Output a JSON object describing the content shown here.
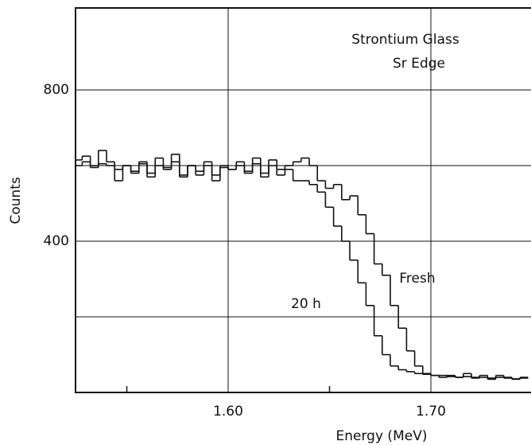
{
  "chart_data": {
    "type": "histogram",
    "xlabel": "Energy (MeV)",
    "ylabel": "Counts",
    "annotations": [
      "Strontium Glass",
      "Sr Edge",
      "Fresh",
      "20 h"
    ],
    "xlim": [
      1.5247,
      1.7494
    ],
    "ylim": [
      0,
      1017
    ],
    "xticks": [
      {
        "value": 1.6,
        "label": "1.60"
      },
      {
        "value": 1.7,
        "label": "1.70"
      }
    ],
    "xminor": [
      1.55,
      1.65
    ],
    "yticks": [
      400,
      800
    ],
    "ygrid": [
      200,
      400,
      600,
      800
    ],
    "grid": true,
    "color": "#111111",
    "bins": [
      1.524,
      1.528,
      1.532,
      1.536,
      1.54,
      1.544,
      1.548,
      1.552,
      1.556,
      1.56,
      1.564,
      1.568,
      1.572,
      1.576,
      1.58,
      1.584,
      1.588,
      1.592,
      1.596,
      1.6,
      1.604,
      1.608,
      1.612,
      1.616,
      1.62,
      1.624,
      1.628,
      1.632,
      1.636,
      1.64,
      1.644,
      1.648,
      1.652,
      1.656,
      1.66,
      1.664,
      1.668,
      1.672,
      1.676,
      1.68,
      1.684,
      1.688,
      1.692,
      1.696,
      1.7,
      1.704,
      1.708,
      1.712,
      1.716,
      1.72,
      1.724,
      1.728,
      1.732,
      1.736,
      1.74,
      1.744,
      1.748
    ],
    "series": [
      {
        "name": "Fresh",
        "values": [
          615,
          625,
          600,
          640,
          610,
          560,
          600,
          580,
          610,
          570,
          620,
          590,
          630,
          570,
          600,
          575,
          610,
          560,
          600,
          590,
          610,
          580,
          620,
          570,
          615,
          590,
          600,
          610,
          620,
          600,
          560,
          540,
          550,
          510,
          520,
          470,
          420,
          340,
          310,
          230,
          170,
          110,
          70,
          50,
          45,
          40,
          45,
          40,
          50,
          40,
          45,
          35,
          45,
          40,
          35,
          40
        ]
      },
      {
        "name": "20 h",
        "values": [
          600,
          610,
          595,
          605,
          600,
          590,
          600,
          585,
          605,
          580,
          600,
          595,
          610,
          575,
          600,
          585,
          600,
          575,
          595,
          590,
          600,
          585,
          605,
          580,
          600,
          575,
          590,
          560,
          560,
          550,
          530,
          490,
          440,
          400,
          350,
          290,
          230,
          150,
          100,
          70,
          60,
          55,
          50,
          48,
          45,
          45,
          42,
          40,
          42,
          38,
          40,
          38,
          40,
          38,
          36,
          38
        ]
      }
    ]
  }
}
